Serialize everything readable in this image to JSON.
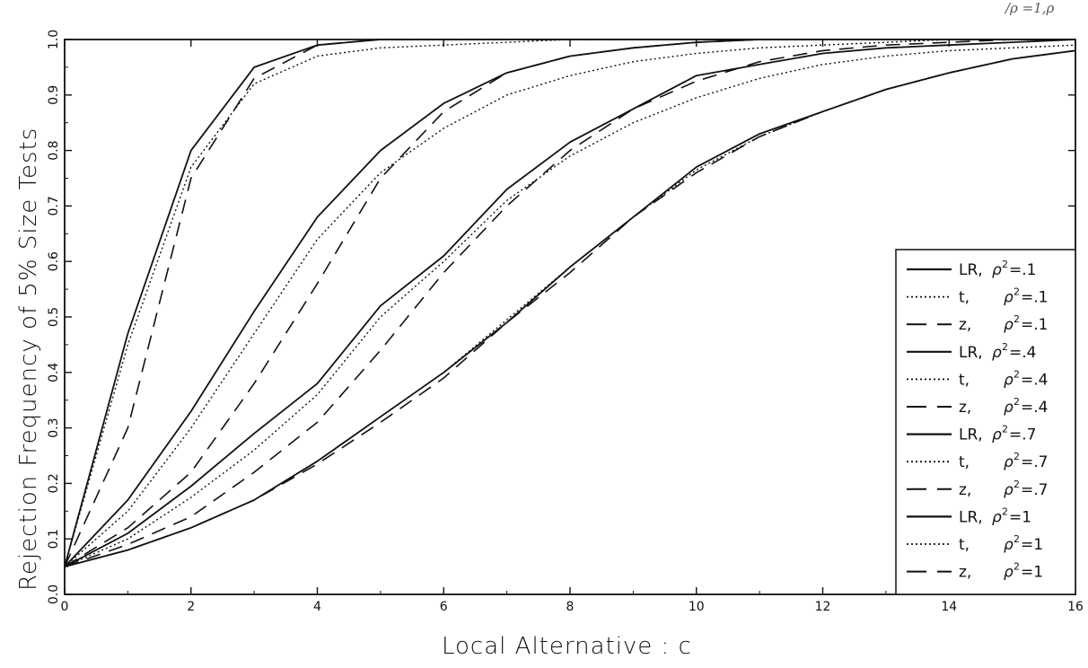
{
  "chart_data": {
    "type": "line",
    "title": "",
    "xlabel": "Local Alternative : c",
    "ylabel": "Rejection Frequency of 5% Size Tests",
    "xlim": [
      0,
      16
    ],
    "ylim": [
      0,
      1
    ],
    "x_ticks": [
      "0",
      "2",
      "4",
      "6",
      "8",
      "10",
      "12",
      "14",
      "16"
    ],
    "y_ticks": [
      "0.0",
      "0.1",
      "0.2",
      "0.3",
      "0.4",
      "0.5",
      "0.6",
      "0.7",
      "0.8",
      "0.9",
      "1.0"
    ],
    "grid": false,
    "legend_position": "bottom-right",
    "corner_annotation": "/ρ =1,ρ",
    "series": [
      {
        "name": "LR, ρ²=.1",
        "legend_main": "LR,",
        "legend_rho": "ρ",
        "legend_sup": "2",
        "legend_val": "=.1",
        "style": "solid",
        "x": [
          0,
          1,
          2,
          3,
          4,
          5,
          6,
          7,
          8,
          9,
          10,
          11,
          12,
          13,
          14,
          15,
          16
        ],
        "y": [
          0.05,
          0.47,
          0.8,
          0.95,
          0.99,
          1.0,
          1.0,
          1.0,
          1.0,
          1.0,
          1.0,
          1.0,
          1.0,
          1.0,
          1.0,
          1.0,
          1.0
        ]
      },
      {
        "name": "t, ρ²=.1",
        "legend_main": "t,",
        "legend_rho": "ρ",
        "legend_sup": "2",
        "legend_val": "=.1",
        "style": "dotted",
        "x": [
          0,
          1,
          2,
          3,
          4,
          5,
          6,
          7,
          8,
          9,
          10,
          11,
          12,
          13,
          14,
          15,
          16
        ],
        "y": [
          0.05,
          0.45,
          0.77,
          0.92,
          0.97,
          0.985,
          0.99,
          0.995,
          1.0,
          1.0,
          1.0,
          1.0,
          1.0,
          1.0,
          1.0,
          1.0,
          1.0
        ]
      },
      {
        "name": "z, ρ²=.1",
        "legend_main": "z,",
        "legend_rho": "ρ",
        "legend_sup": "2",
        "legend_val": "=.1",
        "style": "dashed",
        "x": [
          0,
          1,
          2,
          3,
          4,
          5,
          6,
          7,
          8,
          9,
          10,
          11,
          12,
          13,
          14,
          15,
          16
        ],
        "y": [
          0.05,
          0.3,
          0.75,
          0.93,
          0.99,
          1.0,
          1.0,
          1.0,
          1.0,
          1.0,
          1.0,
          1.0,
          1.0,
          1.0,
          1.0,
          1.0,
          1.0
        ]
      },
      {
        "name": "LR, ρ²=.4",
        "legend_main": "LR,",
        "legend_rho": "ρ",
        "legend_sup": "2",
        "legend_val": "=.4",
        "style": "solid",
        "x": [
          0,
          1,
          2,
          3,
          4,
          5,
          6,
          7,
          8,
          9,
          10,
          11,
          12,
          13,
          14,
          15,
          16
        ],
        "y": [
          0.05,
          0.17,
          0.33,
          0.51,
          0.68,
          0.8,
          0.885,
          0.94,
          0.97,
          0.985,
          0.995,
          1.0,
          1.0,
          1.0,
          1.0,
          1.0,
          1.0
        ]
      },
      {
        "name": "t, ρ²=.4",
        "legend_main": "t,",
        "legend_rho": "ρ",
        "legend_sup": "2",
        "legend_val": "=.4",
        "style": "dotted",
        "x": [
          0,
          1,
          2,
          3,
          4,
          5,
          6,
          7,
          8,
          9,
          10,
          11,
          12,
          13,
          14,
          15,
          16
        ],
        "y": [
          0.05,
          0.15,
          0.3,
          0.47,
          0.64,
          0.76,
          0.84,
          0.9,
          0.935,
          0.96,
          0.975,
          0.985,
          0.99,
          0.995,
          1.0,
          1.0,
          1.0
        ]
      },
      {
        "name": "z, ρ²=.4",
        "legend_main": "z,",
        "legend_rho": "ρ",
        "legend_sup": "2",
        "legend_val": "=.4",
        "style": "dashed",
        "x": [
          0,
          1,
          2,
          3,
          4,
          5,
          6,
          7,
          8,
          9,
          10,
          11,
          12,
          13,
          14,
          15,
          16
        ],
        "y": [
          0.05,
          0.12,
          0.22,
          0.38,
          0.56,
          0.75,
          0.87,
          0.94,
          0.97,
          0.985,
          0.995,
          1.0,
          1.0,
          1.0,
          1.0,
          1.0,
          1.0
        ]
      },
      {
        "name": "LR, ρ²=.7",
        "legend_main": "LR,",
        "legend_rho": "ρ",
        "legend_sup": "2",
        "legend_val": "=.7",
        "style": "solid",
        "x": [
          0,
          1,
          2,
          3,
          4,
          5,
          6,
          7,
          8,
          9,
          10,
          11,
          12,
          13,
          14,
          15,
          16
        ],
        "y": [
          0.05,
          0.11,
          0.195,
          0.29,
          0.38,
          0.52,
          0.61,
          0.73,
          0.815,
          0.875,
          0.935,
          0.955,
          0.975,
          0.985,
          0.99,
          0.995,
          1.0
        ]
      },
      {
        "name": "t, ρ²=.7",
        "legend_main": "t,",
        "legend_rho": "ρ",
        "legend_sup": "2",
        "legend_val": "=.7",
        "style": "dotted",
        "x": [
          0,
          1,
          2,
          3,
          4,
          5,
          6,
          7,
          8,
          9,
          10,
          11,
          12,
          13,
          14,
          15,
          16
        ],
        "y": [
          0.05,
          0.1,
          0.175,
          0.26,
          0.36,
          0.5,
          0.6,
          0.71,
          0.79,
          0.85,
          0.895,
          0.93,
          0.955,
          0.97,
          0.98,
          0.985,
          0.99
        ]
      },
      {
        "name": "z, ρ²=.7",
        "legend_main": "z,",
        "legend_rho": "ρ",
        "legend_sup": "2",
        "legend_val": "=.7",
        "style": "dashed",
        "x": [
          0,
          1,
          2,
          3,
          4,
          5,
          6,
          7,
          8,
          9,
          10,
          11,
          12,
          13,
          14,
          15,
          16
        ],
        "y": [
          0.05,
          0.09,
          0.14,
          0.22,
          0.31,
          0.44,
          0.58,
          0.7,
          0.8,
          0.875,
          0.925,
          0.96,
          0.98,
          0.99,
          0.995,
          1.0,
          1.0
        ]
      },
      {
        "name": "LR, ρ²=1",
        "legend_main": "LR,",
        "legend_rho": "ρ",
        "legend_sup": "2",
        "legend_val": "=1",
        "style": "solid",
        "x": [
          0,
          1,
          2,
          3,
          4,
          5,
          6,
          7,
          8,
          9,
          10,
          11,
          12,
          13,
          14,
          15,
          16
        ],
        "y": [
          0.05,
          0.08,
          0.12,
          0.17,
          0.24,
          0.32,
          0.4,
          0.49,
          0.59,
          0.68,
          0.77,
          0.83,
          0.87,
          0.91,
          0.94,
          0.965,
          0.98
        ]
      },
      {
        "name": "t, ρ²=1",
        "legend_main": "t,",
        "legend_rho": "ρ",
        "legend_sup": "2",
        "legend_val": "=1",
        "style": "dotted",
        "x": [
          0,
          1,
          2,
          3,
          4,
          5,
          6,
          7,
          8,
          9,
          10,
          11,
          12,
          13,
          14,
          15,
          16
        ],
        "y": [
          0.05,
          0.08,
          0.12,
          0.17,
          0.24,
          0.32,
          0.4,
          0.495,
          0.59,
          0.68,
          0.765,
          0.825,
          0.87,
          0.91,
          0.94,
          0.965,
          0.98
        ]
      },
      {
        "name": "z, ρ²=1",
        "legend_main": "z,",
        "legend_rho": "ρ",
        "legend_sup": "2",
        "legend_val": "=1",
        "style": "dashed",
        "x": [
          0,
          1,
          2,
          3,
          4,
          5,
          6,
          7,
          8,
          9,
          10,
          11,
          12,
          13,
          14,
          15,
          16
        ],
        "y": [
          0.05,
          0.08,
          0.12,
          0.17,
          0.235,
          0.31,
          0.39,
          0.49,
          0.58,
          0.68,
          0.76,
          0.825,
          0.87,
          0.91,
          0.94,
          0.965,
          0.98
        ]
      }
    ]
  }
}
